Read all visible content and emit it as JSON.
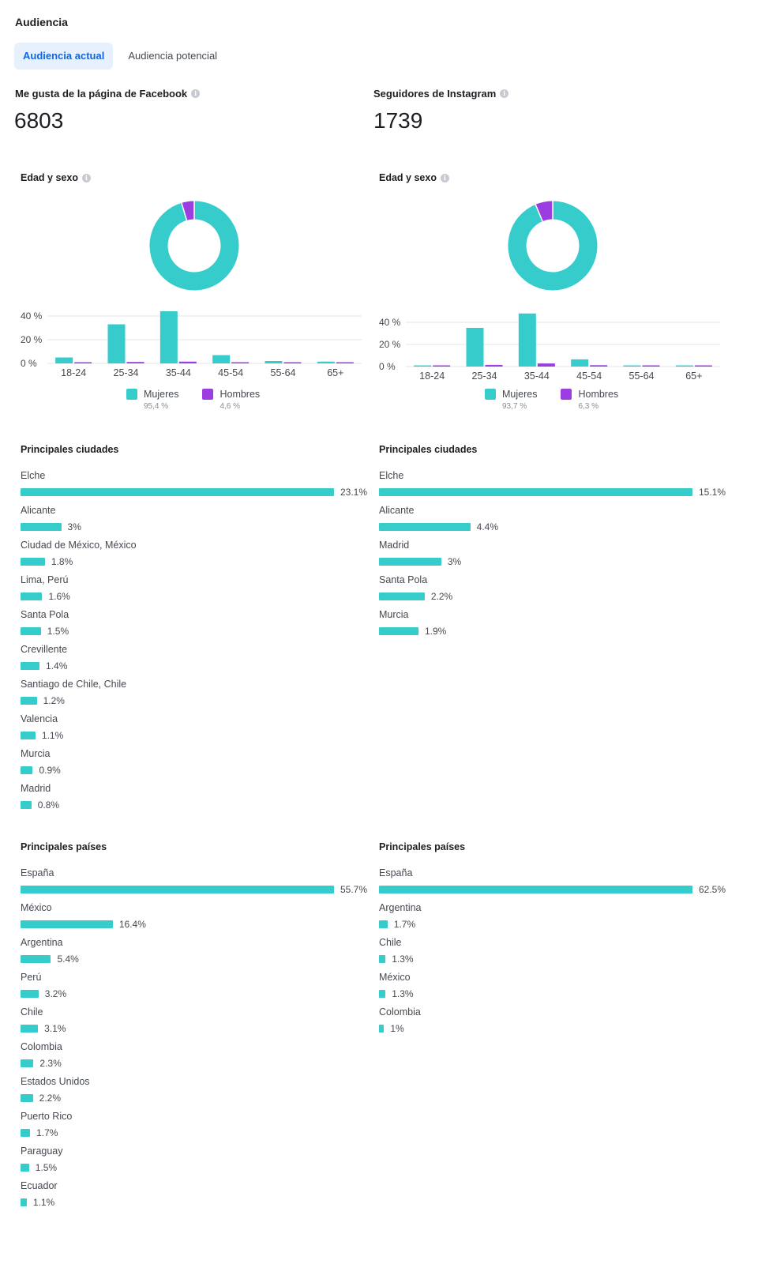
{
  "header": {
    "title": "Audiencia"
  },
  "tabs": [
    {
      "label": "Audiencia actual",
      "active": true
    },
    {
      "label": "Audiencia potencial",
      "active": false
    }
  ],
  "colors": {
    "women": "#36cccc",
    "men": "#9b3de0",
    "accent": "#1266e0"
  },
  "facebook": {
    "metric_label": "Me gusta de la página de Facebook",
    "metric_value": "6803",
    "age_gender_title": "Edad y sexo",
    "legend": {
      "women_label": "Mujeres",
      "women_pct": "95,4 %",
      "men_label": "Hombres",
      "men_pct": "4,6 %"
    },
    "cities_title": "Principales ciudades",
    "cities": [
      {
        "name": "Elche",
        "value": "23.1%",
        "num": 23.1
      },
      {
        "name": "Alicante",
        "value": "3%",
        "num": 3
      },
      {
        "name": "Ciudad de México, México",
        "value": "1.8%",
        "num": 1.8
      },
      {
        "name": "Lima, Perú",
        "value": "1.6%",
        "num": 1.6
      },
      {
        "name": "Santa Pola",
        "value": "1.5%",
        "num": 1.5
      },
      {
        "name": "Crevillente",
        "value": "1.4%",
        "num": 1.4
      },
      {
        "name": "Santiago de Chile, Chile",
        "value": "1.2%",
        "num": 1.2
      },
      {
        "name": "Valencia",
        "value": "1.1%",
        "num": 1.1
      },
      {
        "name": "Murcia",
        "value": "0.9%",
        "num": 0.9
      },
      {
        "name": "Madrid",
        "value": "0.8%",
        "num": 0.8
      }
    ],
    "countries_title": "Principales países",
    "countries": [
      {
        "name": "España",
        "value": "55.7%",
        "num": 55.7
      },
      {
        "name": "México",
        "value": "16.4%",
        "num": 16.4
      },
      {
        "name": "Argentina",
        "value": "5.4%",
        "num": 5.4
      },
      {
        "name": "Perú",
        "value": "3.2%",
        "num": 3.2
      },
      {
        "name": "Chile",
        "value": "3.1%",
        "num": 3.1
      },
      {
        "name": "Colombia",
        "value": "2.3%",
        "num": 2.3
      },
      {
        "name": "Estados Unidos",
        "value": "2.2%",
        "num": 2.2
      },
      {
        "name": "Puerto Rico",
        "value": "1.7%",
        "num": 1.7
      },
      {
        "name": "Paraguay",
        "value": "1.5%",
        "num": 1.5
      },
      {
        "name": "Ecuador",
        "value": "1.1%",
        "num": 1.1
      }
    ]
  },
  "instagram": {
    "metric_label": "Seguidores de Instagram",
    "metric_value": "1739",
    "age_gender_title": "Edad y sexo",
    "legend": {
      "women_label": "Mujeres",
      "women_pct": "93,7 %",
      "men_label": "Hombres",
      "men_pct": "6,3 %"
    },
    "cities_title": "Principales ciudades",
    "cities": [
      {
        "name": "Elche",
        "value": "15.1%",
        "num": 15.1
      },
      {
        "name": "Alicante",
        "value": "4.4%",
        "num": 4.4
      },
      {
        "name": "Madrid",
        "value": "3%",
        "num": 3
      },
      {
        "name": "Santa Pola",
        "value": "2.2%",
        "num": 2.2
      },
      {
        "name": "Murcia",
        "value": "1.9%",
        "num": 1.9
      }
    ],
    "countries_title": "Principales países",
    "countries": [
      {
        "name": "España",
        "value": "62.5%",
        "num": 62.5
      },
      {
        "name": "Argentina",
        "value": "1.7%",
        "num": 1.7
      },
      {
        "name": "Chile",
        "value": "1.3%",
        "num": 1.3
      },
      {
        "name": "México",
        "value": "1.3%",
        "num": 1.3
      },
      {
        "name": "Colombia",
        "value": "1%",
        "num": 1
      }
    ]
  },
  "chart_data": [
    {
      "type": "pie",
      "categories": [
        "Mujeres",
        "Hombres"
      ],
      "values": [
        95.4,
        4.6
      ]
    },
    {
      "type": "bar",
      "categories": [
        "18-24",
        "25-34",
        "35-44",
        "45-54",
        "55-64",
        "65+"
      ],
      "series": [
        {
          "name": "Mujeres",
          "values": [
            5,
            33,
            44,
            7,
            2,
            1.5
          ]
        },
        {
          "name": "Hombres",
          "values": [
            0.3,
            1.2,
            1.5,
            0.8,
            0.3,
            0.2
          ]
        }
      ],
      "yticks": [
        "0 %",
        "20 %",
        "40 %"
      ],
      "ylim": [
        0,
        45
      ]
    },
    {
      "type": "pie",
      "categories": [
        "Mujeres",
        "Hombres"
      ],
      "values": [
        93.7,
        6.3
      ]
    },
    {
      "type": "bar",
      "categories": [
        "18-24",
        "25-34",
        "35-44",
        "45-54",
        "55-64",
        "65+"
      ],
      "series": [
        {
          "name": "Mujeres",
          "values": [
            0.8,
            35,
            48,
            6.5,
            0.8,
            0.8
          ]
        },
        {
          "name": "Hombres",
          "values": [
            0.2,
            1.5,
            2.8,
            1.2,
            0.4,
            0.2
          ]
        }
      ],
      "yticks": [
        "0 %",
        "20 %",
        "40 %"
      ],
      "ylim": [
        0,
        48
      ]
    }
  ]
}
